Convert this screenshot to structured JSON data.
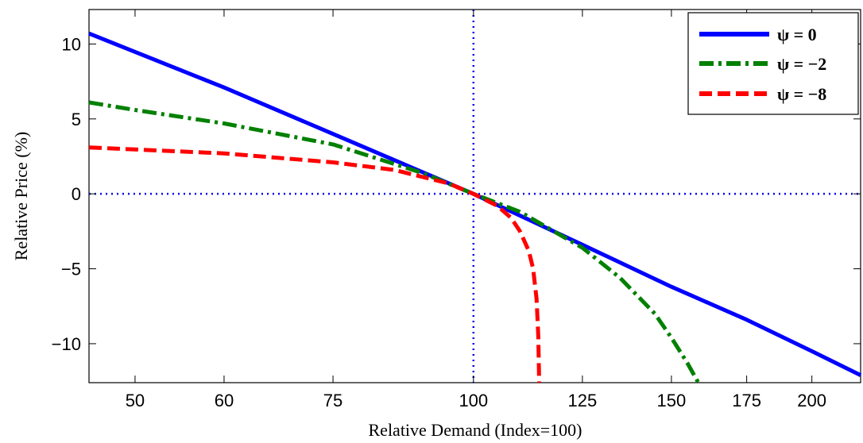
{
  "chart_data": {
    "type": "line",
    "title": "",
    "xlabel": "Relative Demand (Index=100)",
    "ylabel": "Relative Price (%)",
    "xscale": "log",
    "xlim": [
      45.5,
      221
    ],
    "ylim": [
      -12.6,
      12.3
    ],
    "x_ticks": [
      50,
      60,
      75,
      100,
      125,
      150,
      175,
      200
    ],
    "y_ticks": [
      10,
      5,
      0,
      -5,
      -10
    ],
    "y_tick_labels": [
      "10",
      "5",
      "0",
      "−5",
      "−10"
    ],
    "grid": false,
    "reference_lines": [
      {
        "axis": "x",
        "value": 100,
        "style": "dotted",
        "color": "#0000ee"
      },
      {
        "axis": "y",
        "value": 0,
        "style": "dotted",
        "color": "#0000ee"
      }
    ],
    "legend_position": "top-right",
    "series": [
      {
        "name": "ψ = 0",
        "color": "#0000ff",
        "style": "solid",
        "x": [
          45.5,
          60,
          75,
          100,
          125,
          150,
          175,
          200,
          221
        ],
        "y": [
          10.7,
          7.1,
          4.0,
          0.0,
          -3.4,
          -6.2,
          -8.4,
          -10.5,
          -12.1
        ]
      },
      {
        "name": "ψ = −2",
        "color": "#008000",
        "style": "dashdot",
        "x": [
          45.5,
          50,
          60,
          75,
          90,
          100,
          110,
          125,
          135,
          145,
          150,
          155,
          158.5
        ],
        "y": [
          6.1,
          5.6,
          4.7,
          3.3,
          1.4,
          0.0,
          -1.2,
          -3.6,
          -5.6,
          -8.0,
          -9.6,
          -11.3,
          -12.6
        ]
      },
      {
        "name": "ψ = −8",
        "color": "#ff0000",
        "style": "dashed",
        "x": [
          45.5,
          60,
          75,
          85,
          95,
          100,
          105,
          108,
          110,
          112,
          113,
          113.8,
          114.2,
          114.4
        ],
        "y": [
          3.1,
          2.7,
          2.1,
          1.6,
          0.7,
          0.0,
          -0.8,
          -1.6,
          -2.5,
          -3.8,
          -5.0,
          -7.0,
          -9.5,
          -12.6
        ]
      }
    ]
  }
}
